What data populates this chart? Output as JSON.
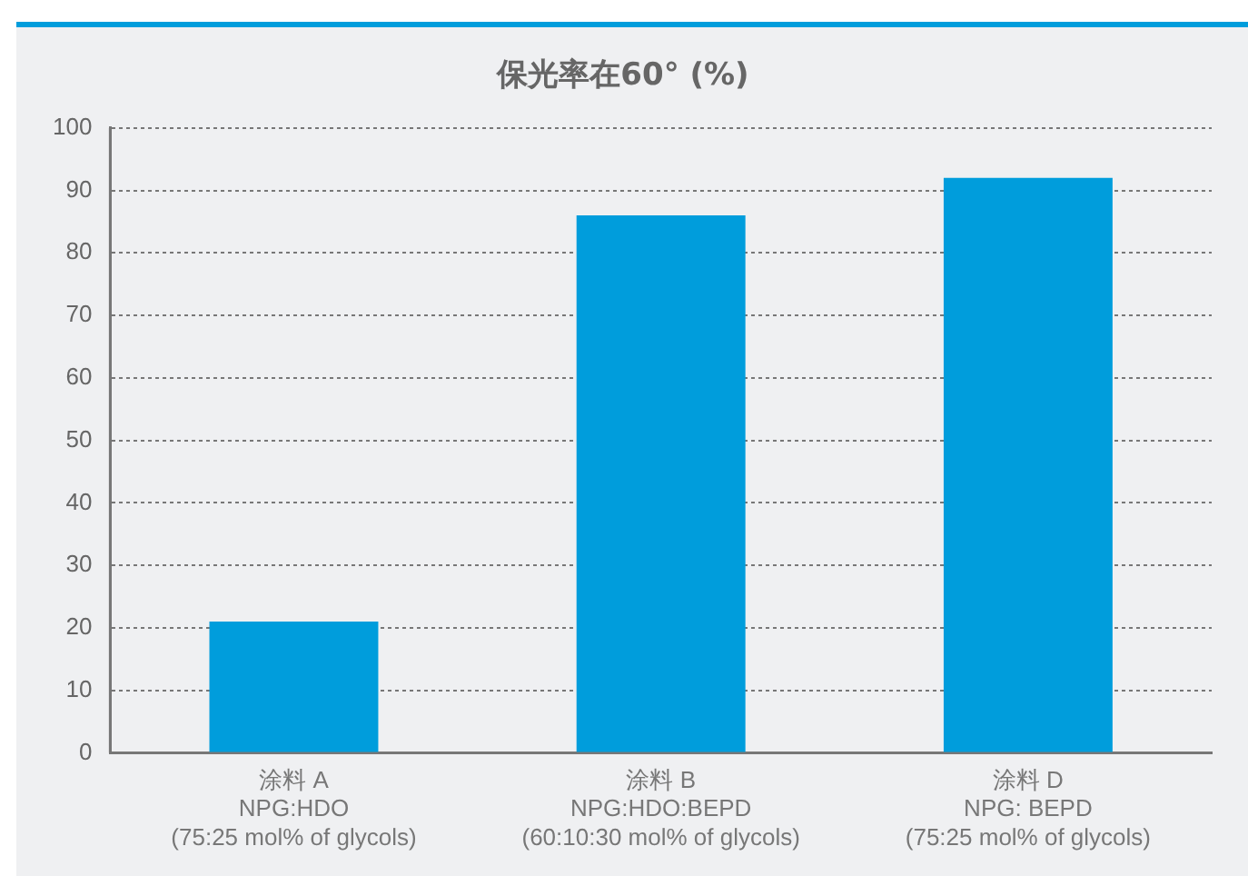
{
  "chart_data": {
    "type": "bar",
    "title": "保光率在60° (%)",
    "categories": [
      "涂料 A\nNPG:HDO\n(75:25 mol% of glycols)",
      "涂料 B\nNPG:HDO:BEPD\n(60:10:30 mol% of glycols)",
      "涂料 D\nNPG: BEPD\n(75:25 mol% of glycols)"
    ],
    "values": [
      21,
      86,
      92
    ],
    "color": "#009ddc",
    "ylim": [
      0,
      100
    ],
    "yticks": [
      0,
      10,
      20,
      30,
      40,
      50,
      60,
      70,
      80,
      90,
      100
    ],
    "grid": "y",
    "legend": false
  }
}
